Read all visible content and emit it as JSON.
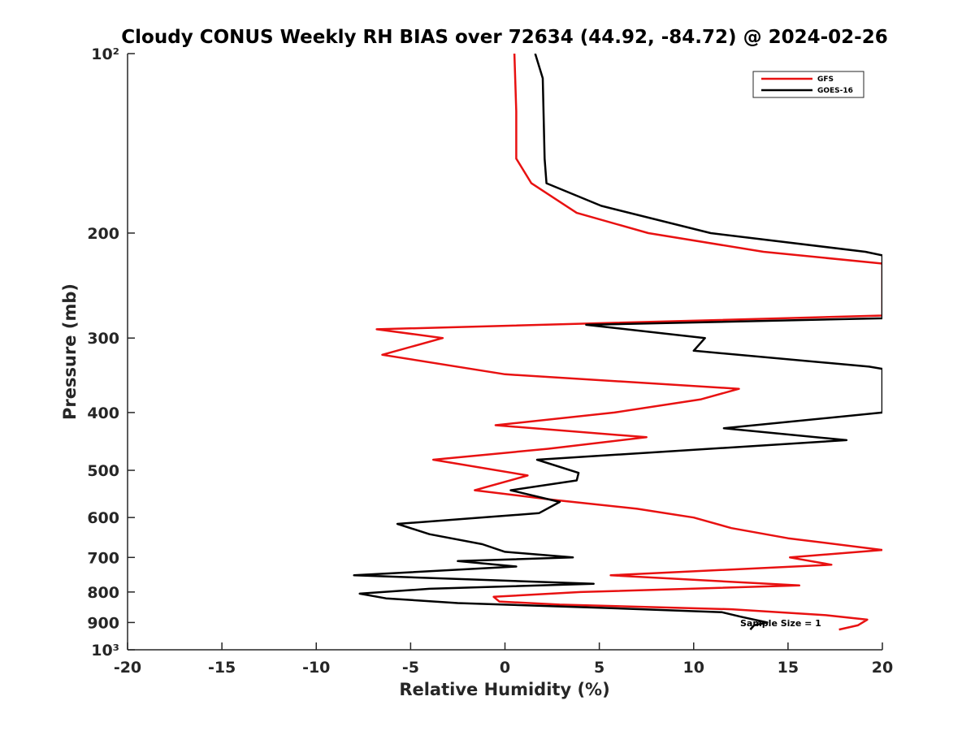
{
  "chart_data": {
    "type": "line",
    "title": "Cloudy CONUS Weekly RH BIAS over 72634 (44.92, -84.72) @ 2024-02-26",
    "xlabel": "Relative Humidity (%)",
    "ylabel": "Pressure (mb)",
    "xlim": [
      -20,
      20
    ],
    "ylim": [
      100,
      1000
    ],
    "yscale": "log",
    "y_reversed": true,
    "grid": false,
    "legend_position": "top-right",
    "x_ticks": [
      -20,
      -15,
      -10,
      -5,
      0,
      5,
      10,
      15,
      20
    ],
    "x_tick_labels": [
      "-20",
      "-15",
      "-10",
      "-5",
      "0",
      "5",
      "10",
      "15",
      "20"
    ],
    "y_ticks": [
      100,
      200,
      300,
      400,
      500,
      600,
      700,
      800,
      900,
      1000
    ],
    "y_tick_labels": [
      "10²",
      "200",
      "300",
      "400",
      "500",
      "600",
      "700",
      "800",
      "900",
      "10³"
    ],
    "annotation": "Sample Size = 1",
    "series": [
      {
        "name": "GFS",
        "color": "#e81111",
        "points": [
          [
            0.5,
            100
          ],
          [
            0.6,
            125
          ],
          [
            0.6,
            150
          ],
          [
            1.4,
            165
          ],
          [
            3.8,
            185
          ],
          [
            7.6,
            200
          ],
          [
            13.7,
            215
          ],
          [
            20,
            225
          ],
          [
            20,
            275
          ],
          [
            -6.8,
            290
          ],
          [
            -3.3,
            300
          ],
          [
            -6.5,
            320
          ],
          [
            0,
            345
          ],
          [
            12.4,
            365
          ],
          [
            10.4,
            380
          ],
          [
            5.8,
            400
          ],
          [
            -0.5,
            420
          ],
          [
            7.5,
            440
          ],
          [
            2.3,
            460
          ],
          [
            -3.8,
            480
          ],
          [
            1.2,
            510
          ],
          [
            -1.6,
            540
          ],
          [
            2.5,
            560
          ],
          [
            7,
            580
          ],
          [
            10,
            600
          ],
          [
            12,
            625
          ],
          [
            15,
            650
          ],
          [
            20,
            680
          ],
          [
            15.1,
            700
          ],
          [
            17.3,
            720
          ],
          [
            5.6,
            750
          ],
          [
            15.6,
            780
          ],
          [
            4,
            800
          ],
          [
            -0.6,
            815
          ],
          [
            -0.3,
            830
          ],
          [
            2.9,
            840
          ],
          [
            12,
            855
          ],
          [
            17,
            875
          ],
          [
            19.2,
            890
          ],
          [
            18.7,
            910
          ],
          [
            17.7,
            925
          ]
        ]
      },
      {
        "name": "GOES-16",
        "color": "#000000",
        "points": [
          [
            1.6,
            100
          ],
          [
            2.0,
            110
          ],
          [
            2.1,
            150
          ],
          [
            2.2,
            165
          ],
          [
            5.1,
            180
          ],
          [
            10.9,
            200
          ],
          [
            19.1,
            215
          ],
          [
            20,
            218
          ],
          [
            20,
            278
          ],
          [
            4.3,
            285
          ],
          [
            10.6,
            300
          ],
          [
            10.0,
            315
          ],
          [
            19.3,
            335
          ],
          [
            20,
            338
          ],
          [
            20,
            400
          ],
          [
            11.6,
            425
          ],
          [
            18.1,
            445
          ],
          [
            1.7,
            480
          ],
          [
            3.9,
            505
          ],
          [
            3.8,
            520
          ],
          [
            0.3,
            540
          ],
          [
            2.9,
            565
          ],
          [
            1.8,
            590
          ],
          [
            -5.7,
            615
          ],
          [
            -4,
            640
          ],
          [
            -1.2,
            665
          ],
          [
            0,
            685
          ],
          [
            3.6,
            700
          ],
          [
            -2.5,
            710
          ],
          [
            0.6,
            725
          ],
          [
            -8,
            750
          ],
          [
            4.7,
            775
          ],
          [
            -4,
            790
          ],
          [
            -7.7,
            805
          ],
          [
            -6.3,
            820
          ],
          [
            -2.5,
            835
          ],
          [
            5,
            850
          ],
          [
            11.5,
            865
          ],
          [
            12.5,
            880
          ],
          [
            13.9,
            900
          ],
          [
            13.2,
            910
          ],
          [
            13,
            925
          ]
        ]
      }
    ]
  }
}
